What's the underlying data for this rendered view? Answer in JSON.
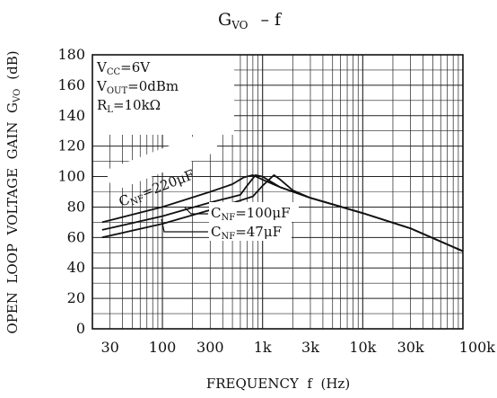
{
  "chart_data": {
    "type": "line",
    "title": {
      "main": "G",
      "sub": "VO",
      "rest": "–  f"
    },
    "xlabel": "FREQUENCY  f  (Hz)",
    "ylabel": "OPEN  LOOP  VOLTAGE  GAIN  G",
    "ylabel_sub": "VO",
    "ylabel_unit": "(dB)",
    "x_scale": "log",
    "xlim": [
      20,
      100000
    ],
    "ylim": [
      0,
      180
    ],
    "x_ticks": [
      {
        "value": 30,
        "label": "30"
      },
      {
        "value": 100,
        "label": "100"
      },
      {
        "value": 300,
        "label": "300"
      },
      {
        "value": 1000,
        "label": "1k"
      },
      {
        "value": 3000,
        "label": "3k"
      },
      {
        "value": 10000,
        "label": "10k"
      },
      {
        "value": 30000,
        "label": "30k"
      },
      {
        "value": 100000,
        "label": "100k"
      }
    ],
    "y_ticks": [
      0,
      20,
      40,
      60,
      80,
      100,
      120,
      140,
      160,
      180
    ],
    "grid": true,
    "conditions": [
      {
        "main": "V",
        "sub": "CC",
        "rest": "=6V"
      },
      {
        "main": "V",
        "sub": "OUT",
        "rest": "=0dBm"
      },
      {
        "main": "R",
        "sub": "L",
        "rest": "=10kΩ"
      }
    ],
    "series": [
      {
        "name_main": "C",
        "name_sub": "NF",
        "name_rest": "=220μF",
        "x": [
          25,
          100,
          300,
          500,
          650,
          800,
          1000,
          1500,
          3000,
          10000,
          30000,
          100000
        ],
        "y": [
          70,
          80,
          90,
          95,
          99.5,
          101,
          98,
          93,
          86,
          76,
          66,
          51
        ]
      },
      {
        "name_main": "C",
        "name_sub": "NF",
        "name_rest": "=100μF",
        "x": [
          25,
          100,
          300,
          600,
          700,
          850,
          1000,
          1500,
          3000,
          10000,
          30000,
          100000
        ],
        "y": [
          65,
          74,
          83,
          88,
          94,
          101,
          100,
          93,
          86,
          76,
          66,
          51
        ]
      },
      {
        "name_main": "C",
        "name_sub": "NF",
        "name_rest": "=47μF",
        "x": [
          25,
          100,
          300,
          800,
          1000,
          1300,
          1500,
          2000,
          3000,
          10000,
          30000,
          100000
        ],
        "y": [
          60,
          69,
          78,
          87,
          94,
          101,
          98,
          91,
          86,
          76,
          66,
          51
        ]
      }
    ]
  }
}
